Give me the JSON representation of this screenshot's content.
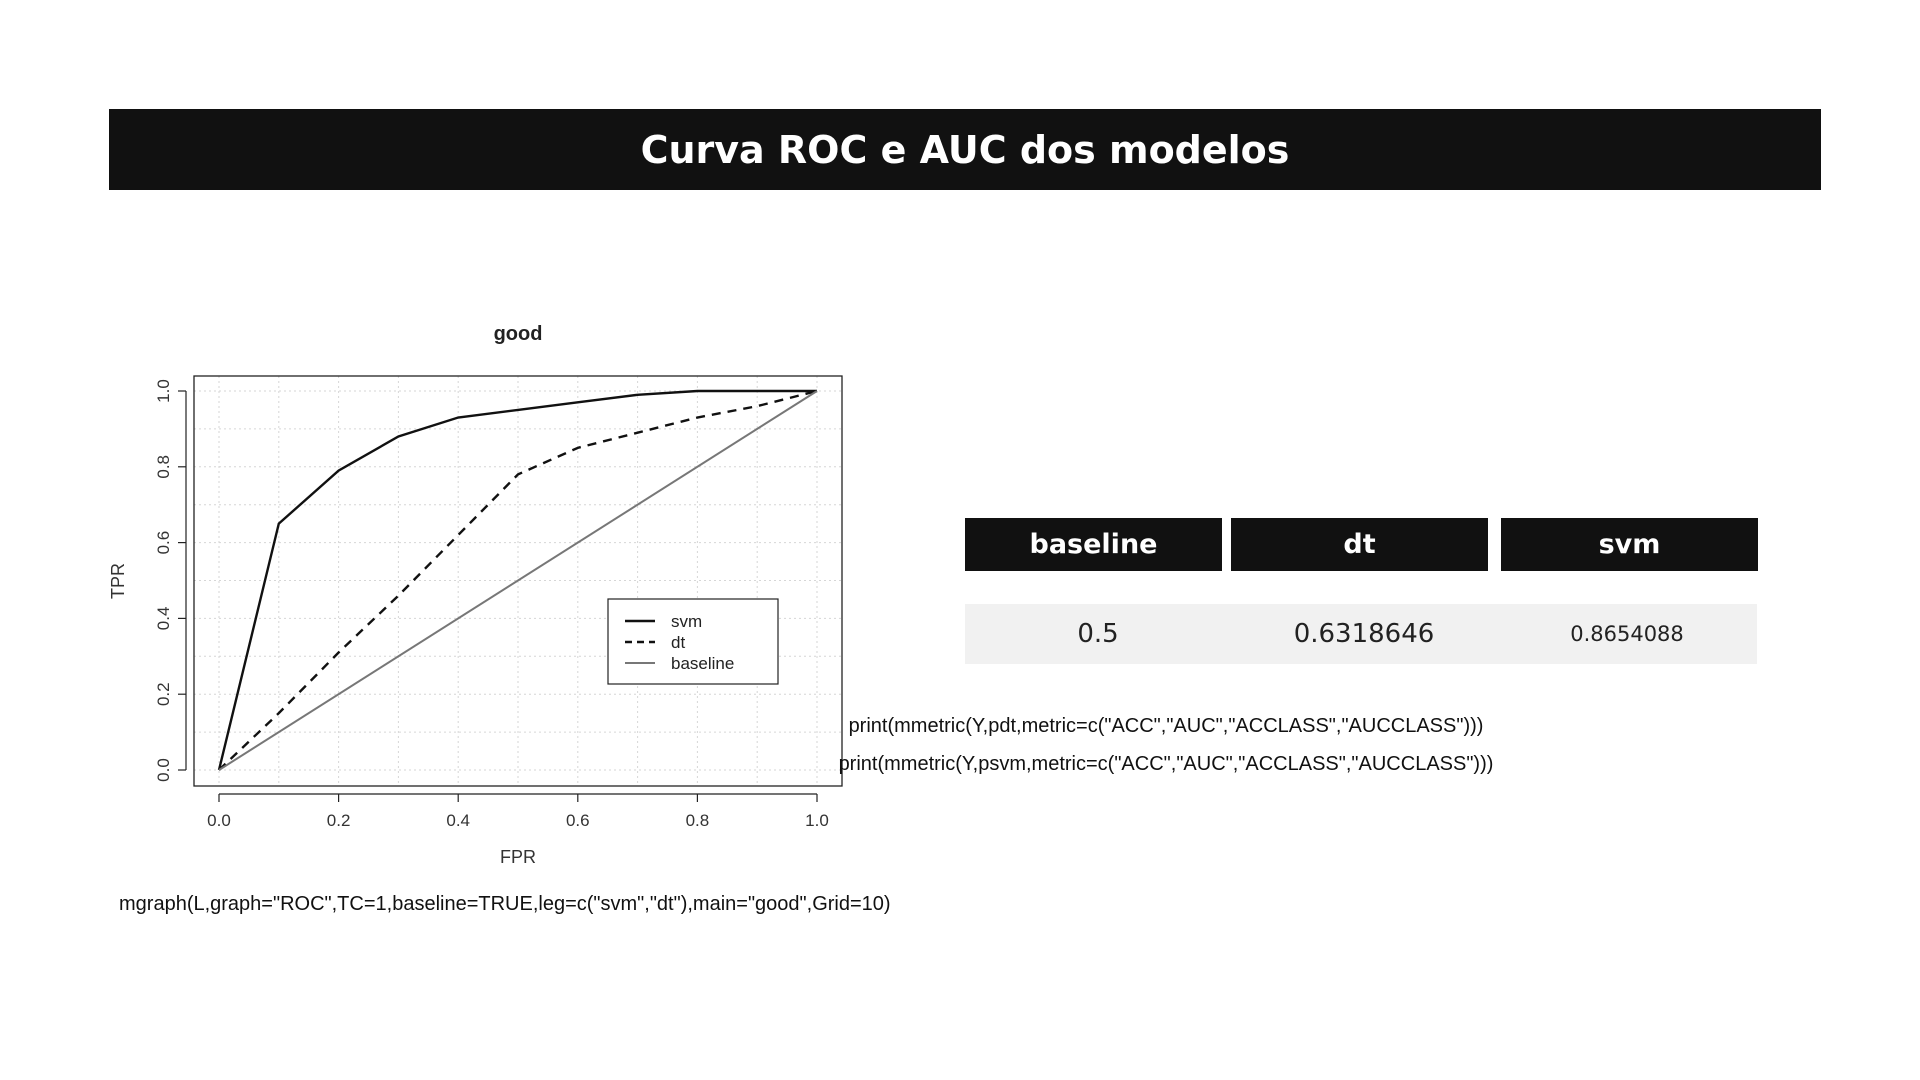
{
  "slide": {
    "title": "Curva ROC e AUC dos modelos"
  },
  "table": {
    "headers": [
      "baseline",
      "dt",
      "svm"
    ],
    "values": [
      "0.5",
      "0.6318646",
      "0.8654088"
    ]
  },
  "code": {
    "graph_call": "mgraph(L,graph=\"ROC\",TC=1,baseline=TRUE,leg=c(\"svm\",\"dt\"),main=\"good\",Grid=10)",
    "print_dt": "print(mmetric(Y,pdt,metric=c(\"ACC\",\"AUC\",\"ACCLASS\",\"AUCCLASS\")))",
    "print_svm": "print(mmetric(Y,psvm,metric=c(\"ACC\",\"AUC\",\"ACCLASS\",\"AUCCLASS\")))"
  },
  "chart_data": {
    "type": "line",
    "title": "good",
    "xlabel": "FPR",
    "ylabel": "TPR",
    "xlim": [
      0,
      1
    ],
    "ylim": [
      0,
      1
    ],
    "xticks": [
      "0.0",
      "0.2",
      "0.4",
      "0.6",
      "0.8",
      "1.0"
    ],
    "yticks": [
      "0.0",
      "0.2",
      "0.4",
      "0.6",
      "0.8",
      "1.0"
    ],
    "grid": true,
    "legend_position": "bottom-right",
    "series": [
      {
        "name": "svm",
        "style": "solid",
        "color": "#111111",
        "x": [
          0,
          0.1,
          0.2,
          0.3,
          0.4,
          0.5,
          0.6,
          0.7,
          0.8,
          0.9,
          1.0
        ],
        "y": [
          0,
          0.65,
          0.79,
          0.88,
          0.93,
          0.95,
          0.97,
          0.99,
          1.0,
          1.0,
          1.0
        ]
      },
      {
        "name": "dt",
        "style": "dashed",
        "color": "#111111",
        "x": [
          0,
          0.1,
          0.2,
          0.3,
          0.4,
          0.5,
          0.6,
          0.7,
          0.8,
          0.9,
          1.0
        ],
        "y": [
          0,
          0.15,
          0.31,
          0.46,
          0.62,
          0.78,
          0.85,
          0.89,
          0.93,
          0.96,
          1.0
        ]
      },
      {
        "name": "baseline",
        "style": "solid",
        "color": "#777777",
        "x": [
          0,
          1
        ],
        "y": [
          0,
          1
        ]
      }
    ]
  }
}
